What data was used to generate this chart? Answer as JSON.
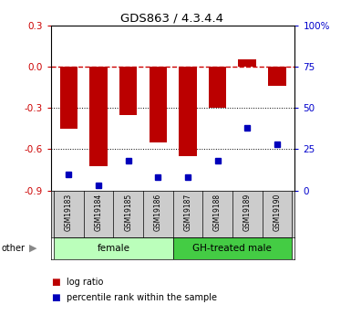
{
  "title": "GDS863 / 4.3.4.4",
  "samples": [
    "GSM19183",
    "GSM19184",
    "GSM19185",
    "GSM19186",
    "GSM19187",
    "GSM19188",
    "GSM19189",
    "GSM19190"
  ],
  "log_ratio": [
    -0.45,
    -0.72,
    -0.35,
    -0.55,
    -0.65,
    -0.3,
    0.055,
    -0.14
  ],
  "percentile": [
    10,
    3,
    18,
    8,
    8,
    18,
    38,
    28
  ],
  "groups": [
    {
      "label": "female",
      "start": 0,
      "end": 4,
      "color": "#bbffbb"
    },
    {
      "label": "GH-treated male",
      "start": 4,
      "end": 8,
      "color": "#44cc44"
    }
  ],
  "ylim_left": [
    -0.9,
    0.3
  ],
  "ylim_right": [
    0,
    100
  ],
  "yticks_left": [
    -0.9,
    -0.6,
    -0.3,
    0.0,
    0.3
  ],
  "yticks_right": [
    0,
    25,
    50,
    75,
    100
  ],
  "bar_color": "#bb0000",
  "dot_color": "#0000bb",
  "zero_line_color": "#cc0000",
  "bg_color": "#ffffff",
  "plot_bg": "#ffffff",
  "legend_items": [
    "log ratio",
    "percentile rank within the sample"
  ],
  "other_label": "other",
  "label_bg": "#cccccc",
  "group1_color": "#bbffbb",
  "group2_color": "#44dd44"
}
